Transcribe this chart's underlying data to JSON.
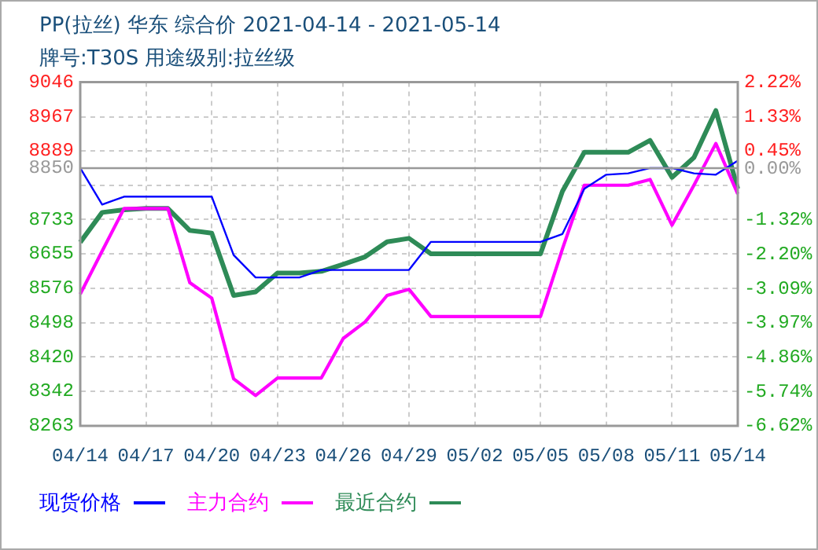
{
  "chart_data": {
    "type": "line",
    "title": "PP(拉丝) 华东 综合价 2021-04-14 - 2021-05-14",
    "subtitle": "牌号:T30S 用途级别:拉丝级",
    "categories": [
      "04/14",
      null,
      null,
      "04/17",
      null,
      null,
      "04/20",
      null,
      null,
      "04/23",
      null,
      null,
      "04/26",
      null,
      null,
      "04/29",
      null,
      null,
      "05/02",
      null,
      null,
      "05/05",
      null,
      null,
      "05/08",
      null,
      null,
      "05/11",
      null,
      null,
      "05/14"
    ],
    "series": [
      {
        "name": "现货价格",
        "color": "#0000ff",
        "values": [
          8850,
          8767,
          8785,
          8785,
          8785,
          8785,
          8785,
          8652,
          8601,
          8601,
          8601,
          8618,
          8618,
          8618,
          8618,
          8618,
          8682,
          8682,
          8682,
          8682,
          8682,
          8682,
          8700,
          8803,
          8835,
          8838,
          8850,
          8850,
          8838,
          8835,
          8867
        ]
      },
      {
        "name": "主力合约",
        "color": "#ff00ff",
        "values": [
          8563,
          8661,
          8758,
          8758,
          8758,
          8589,
          8554,
          8370,
          8332,
          8372,
          8372,
          8372,
          8462,
          8500,
          8560,
          8574,
          8512,
          8512,
          8512,
          8512,
          8512,
          8512,
          8666,
          8811,
          8811,
          8811,
          8824,
          8720,
          8811,
          8906,
          8791
        ]
      },
      {
        "name": "最近合约",
        "color": "#2e8b57",
        "values": [
          8681,
          8749,
          8755,
          8758,
          8758,
          8708,
          8702,
          8560,
          8568,
          8611,
          8611,
          8615,
          8631,
          8648,
          8682,
          8690,
          8655,
          8655,
          8655,
          8655,
          8655,
          8655,
          8797,
          8886,
          8886,
          8886,
          8913,
          8829,
          8874,
          8981,
          8803
        ]
      }
    ],
    "ylim": [
      8263,
      9046
    ],
    "yticks": [
      8263,
      8342,
      8420,
      8498,
      8576,
      8655,
      8733,
      {
        "value": 8811,
        "label": null
      },
      8850,
      8889,
      8967,
      9046
    ],
    "y2lim": [
      -6.62,
      2.22
    ],
    "y2ticks": [
      {
        "value": -6.62,
        "label": "-6.62%"
      },
      {
        "value": -5.74,
        "label": "-5.74%"
      },
      {
        "value": -4.86,
        "label": "-4.86%"
      },
      {
        "value": -3.97,
        "label": "-3.97%"
      },
      {
        "value": -3.09,
        "label": "-3.09%"
      },
      {
        "value": -2.2,
        "label": "-2.20%"
      },
      {
        "value": -1.32,
        "label": "-1.32%"
      },
      {
        "value": -0.44,
        "label": null
      },
      {
        "value": 0,
        "label": "0.00%"
      },
      {
        "value": 0.45,
        "label": "0.45%"
      },
      {
        "value": 1.33,
        "label": "1.33%"
      },
      {
        "value": 2.22,
        "label": "2.22%"
      }
    ],
    "ref_lines": [
      {
        "axis": "y",
        "value": 8850,
        "color": "#999999"
      }
    ],
    "grid": true,
    "legend": "bottom",
    "marker": "none",
    "line_style": "solid"
  }
}
